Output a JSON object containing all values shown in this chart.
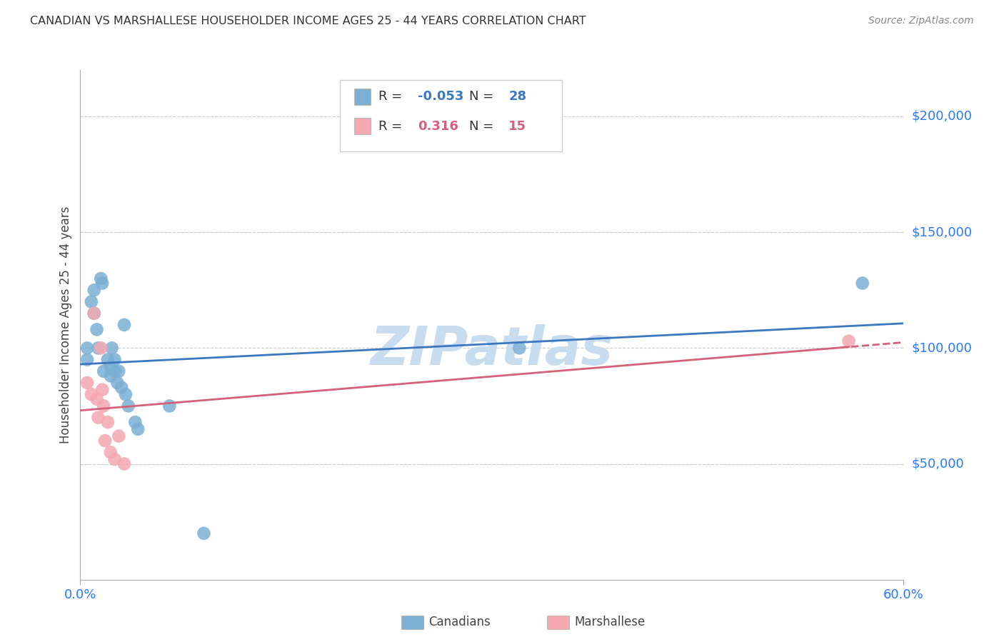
{
  "title": "CANADIAN VS MARSHALLESE HOUSEHOLDER INCOME AGES 25 - 44 YEARS CORRELATION CHART",
  "source": "Source: ZipAtlas.com",
  "ylabel": "Householder Income Ages 25 - 44 years",
  "y_tick_labels": [
    "$50,000",
    "$100,000",
    "$150,000",
    "$200,000"
  ],
  "y_tick_values": [
    50000,
    100000,
    150000,
    200000
  ],
  "y_min": 0,
  "y_max": 220000,
  "x_min": 0.0,
  "x_max": 0.6,
  "canadians_R": -0.053,
  "canadians_N": 28,
  "marshallese_R": 0.316,
  "marshallese_N": 15,
  "canadian_color": "#7BAFD4",
  "marshallese_color": "#F4A7B0",
  "trend_canadian_color": "#3B78BF",
  "trend_marshallese_color": "#D4607A",
  "background_color": "#FFFFFF",
  "grid_color": "#CCCCCC",
  "title_color": "#333333",
  "axis_label_color": "#2979FF",
  "canadians_x": [
    0.005,
    0.005,
    0.008,
    0.01,
    0.01,
    0.012,
    0.013,
    0.015,
    0.016,
    0.017,
    0.02,
    0.022,
    0.022,
    0.023,
    0.025,
    0.025,
    0.027,
    0.028,
    0.03,
    0.032,
    0.033,
    0.035,
    0.04,
    0.042,
    0.065,
    0.09,
    0.32,
    0.57
  ],
  "canadians_y": [
    100000,
    95000,
    120000,
    125000,
    115000,
    108000,
    100000,
    130000,
    128000,
    90000,
    95000,
    92000,
    88000,
    100000,
    95000,
    90000,
    85000,
    90000,
    83000,
    110000,
    80000,
    75000,
    68000,
    65000,
    75000,
    20000,
    100000,
    128000
  ],
  "marshallese_x": [
    0.005,
    0.008,
    0.01,
    0.012,
    0.013,
    0.015,
    0.016,
    0.017,
    0.018,
    0.02,
    0.022,
    0.025,
    0.028,
    0.032,
    0.56
  ],
  "marshallese_y": [
    85000,
    80000,
    115000,
    78000,
    70000,
    100000,
    82000,
    75000,
    60000,
    68000,
    55000,
    52000,
    62000,
    50000,
    103000
  ],
  "watermark_text": "ZIPatlas",
  "watermark_color": "#C8DCF0"
}
